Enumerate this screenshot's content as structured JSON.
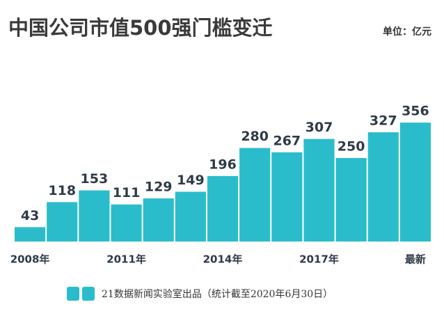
{
  "chart_data": {
    "type": "bar",
    "title": "中国公司市值500强门槛变迁",
    "unit": "单位：亿元",
    "note": "21数据新闻实验室出品（统计截至2020年6月30日）",
    "categories": [
      "2008年",
      null,
      null,
      "2011年",
      null,
      null,
      "2014年",
      null,
      null,
      "2017年",
      null,
      null,
      "最新"
    ],
    "values": [
      43,
      118,
      153,
      111,
      129,
      149,
      196,
      280,
      267,
      307,
      250,
      327,
      356
    ],
    "color": "#2bbccb",
    "ylim": [
      0,
      400
    ]
  }
}
